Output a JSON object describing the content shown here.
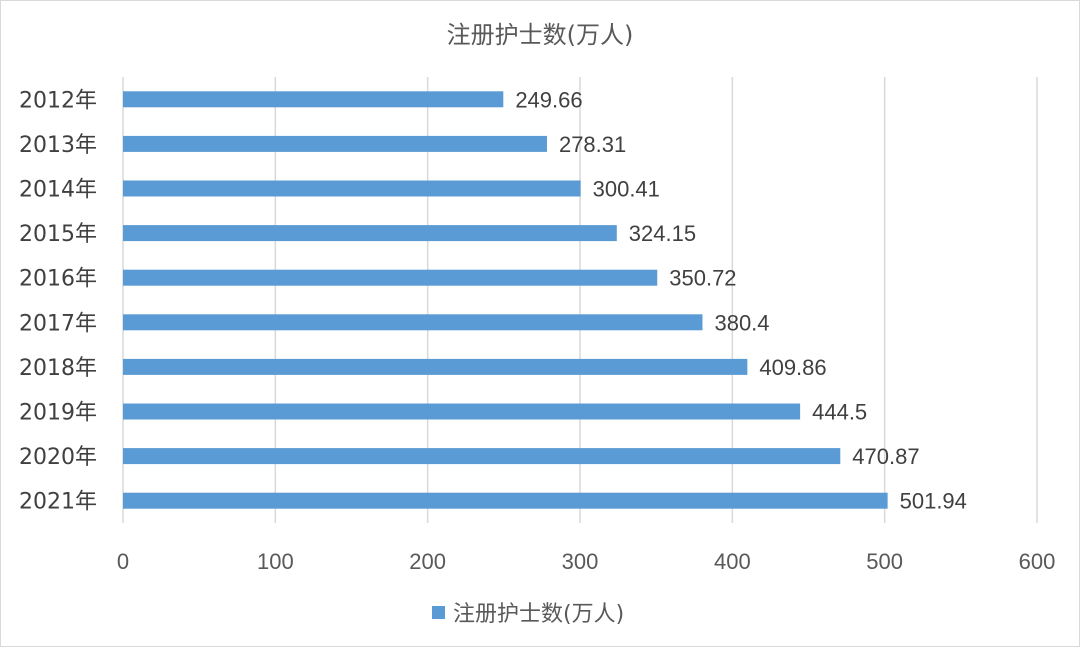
{
  "chart_data": {
    "type": "bar",
    "orientation": "horizontal",
    "title": "注册护士数(万人)",
    "categories": [
      "2012年",
      "2013年",
      "2014年",
      "2015年",
      "2016年",
      "2017年",
      "2018年",
      "2019年",
      "2020年",
      "2021年"
    ],
    "series": [
      {
        "name": "注册护士数(万人)",
        "values": [
          249.66,
          278.31,
          300.41,
          324.15,
          350.72,
          380.4,
          409.86,
          444.5,
          470.87,
          501.94
        ],
        "labels": [
          "249.66",
          "278.31",
          "300.41",
          "324.15",
          "350.72",
          "380.4",
          "409.86",
          "444.5",
          "470.87",
          "501.94"
        ],
        "color": "#5b9bd5"
      }
    ],
    "xlim": [
      0,
      600
    ],
    "xticks": [
      0,
      100,
      200,
      300,
      400,
      500,
      600
    ],
    "xtick_labels": [
      "0",
      "100",
      "200",
      "300",
      "400",
      "500",
      "600"
    ],
    "grid": true,
    "legend": "bottom"
  }
}
